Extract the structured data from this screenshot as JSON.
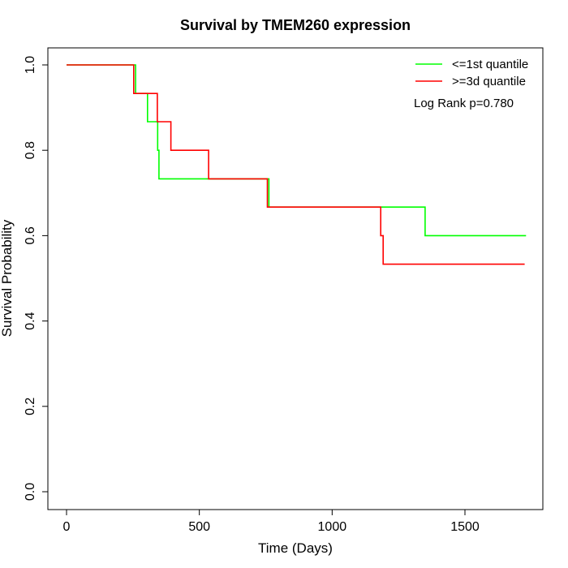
{
  "chart_data": {
    "type": "line",
    "title": "Survival by TMEM260 expression",
    "xlabel": "Time (Days)",
    "ylabel": "Survival Probability",
    "xlim": [
      0,
      1750
    ],
    "ylim": [
      0,
      1
    ],
    "xticks": [
      0,
      500,
      1000,
      1500
    ],
    "yticks": [
      0.0,
      0.2,
      0.4,
      0.6,
      0.8,
      1.0
    ],
    "xtick_labels": [
      "0",
      "500",
      "1000",
      "1500"
    ],
    "ytick_labels": [
      "0.0",
      "0.2",
      "0.4",
      "0.6",
      "0.8",
      "1.0"
    ],
    "grid": false,
    "legend_position": "top-right",
    "annotation": "Log Rank p=0.780",
    "series": [
      {
        "name": "<=1st quantile",
        "color": "#00ff00",
        "step_points": [
          [
            0,
            1.0
          ],
          [
            260,
            1.0
          ],
          [
            260,
            0.933
          ],
          [
            305,
            0.933
          ],
          [
            305,
            0.867
          ],
          [
            343,
            0.867
          ],
          [
            343,
            0.8
          ],
          [
            348,
            0.8
          ],
          [
            348,
            0.733
          ],
          [
            762,
            0.733
          ],
          [
            762,
            0.667
          ],
          [
            1350,
            0.667
          ],
          [
            1350,
            0.6
          ],
          [
            1730,
            0.6
          ]
        ]
      },
      {
        "name": ">=3d quantile",
        "color": "#ff0000",
        "step_points": [
          [
            0,
            1.0
          ],
          [
            253,
            1.0
          ],
          [
            253,
            0.933
          ],
          [
            342,
            0.933
          ],
          [
            342,
            0.867
          ],
          [
            393,
            0.867
          ],
          [
            393,
            0.8
          ],
          [
            535,
            0.8
          ],
          [
            535,
            0.733
          ],
          [
            756,
            0.733
          ],
          [
            756,
            0.667
          ],
          [
            1183,
            0.667
          ],
          [
            1183,
            0.6
          ],
          [
            1192,
            0.6
          ],
          [
            1192,
            0.533
          ],
          [
            1725,
            0.533
          ]
        ]
      }
    ]
  }
}
